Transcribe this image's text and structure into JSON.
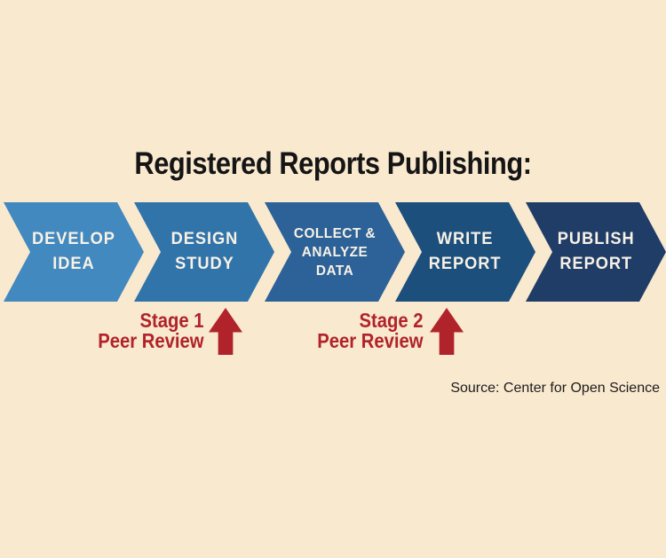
{
  "title": "Registered Reports Publishing:",
  "source": "Source: Center for Open Science",
  "colors": {
    "background": "#f9e9cf",
    "title_text": "#151515",
    "red_accent": "#b0232a",
    "chevron_text": "#f8f2e6"
  },
  "stages": [
    {
      "lines": [
        "DEVELOP",
        "IDEA"
      ],
      "color": "#4289bf"
    },
    {
      "lines": [
        "DESIGN",
        "STUDY"
      ],
      "color": "#3174aa"
    },
    {
      "lines": [
        "COLLECT &",
        "ANALYZE",
        "DATA"
      ],
      "color": "#2d6298"
    },
    {
      "lines": [
        "WRITE",
        "REPORT"
      ],
      "color": "#1d4f7c"
    },
    {
      "lines": [
        "PUBLISH",
        "REPORT"
      ],
      "color": "#203d68"
    }
  ],
  "reviews": [
    {
      "lines": [
        "Stage 1",
        "Peer Review"
      ],
      "icon": "arrow-up-icon"
    },
    {
      "lines": [
        "Stage 2",
        "Peer Review"
      ],
      "icon": "arrow-up-icon"
    }
  ]
}
